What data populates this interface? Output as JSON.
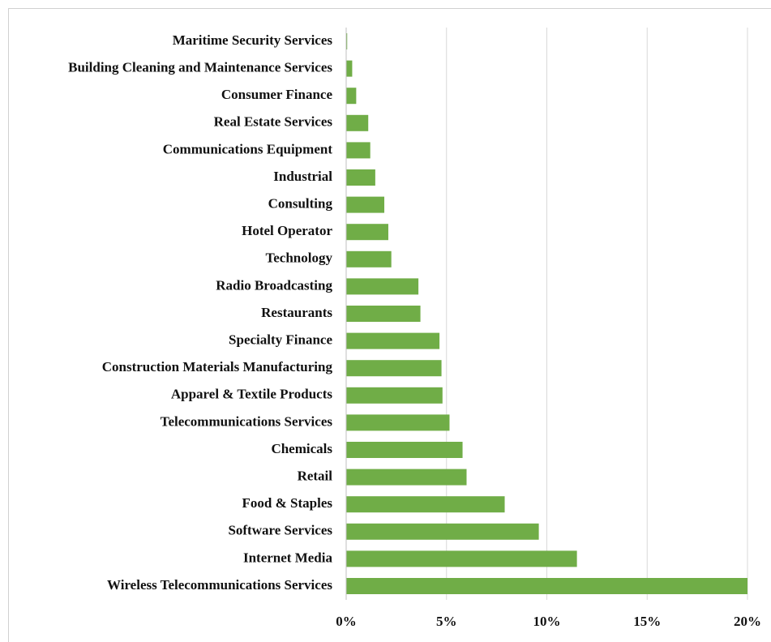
{
  "chart_data": {
    "type": "bar",
    "orientation": "horizontal",
    "categories": [
      "Maritime Security Services",
      "Building Cleaning and Maintenance Services",
      "Consumer Finance",
      "Real Estate Services",
      "Communications Equipment",
      "Industrial",
      "Consulting",
      "Hotel Operator",
      "Technology",
      "Radio Broadcasting",
      "Restaurants",
      "Specialty Finance",
      "Construction Materials Manufacturing",
      "Apparel & Textile Products",
      "Telecommunications Services",
      "Chemicals",
      "Retail",
      "Food & Staples",
      "Software Services",
      "Internet Media",
      "Wireless Telecommunications Services"
    ],
    "values": [
      0.05,
      0.3,
      0.5,
      1.1,
      1.2,
      1.45,
      1.9,
      2.1,
      2.25,
      3.6,
      3.7,
      4.65,
      4.75,
      4.8,
      5.15,
      5.8,
      6.0,
      7.9,
      9.6,
      11.5,
      20.0
    ],
    "color": "#70ad47",
    "xlim": [
      0,
      20
    ],
    "xticks": [
      {
        "value": 0,
        "label": "0%"
      },
      {
        "value": 5,
        "label": "5%"
      },
      {
        "value": 10,
        "label": "10%"
      },
      {
        "value": 15,
        "label": "15%"
      },
      {
        "value": 20,
        "label": "20%"
      }
    ],
    "grid": true
  }
}
